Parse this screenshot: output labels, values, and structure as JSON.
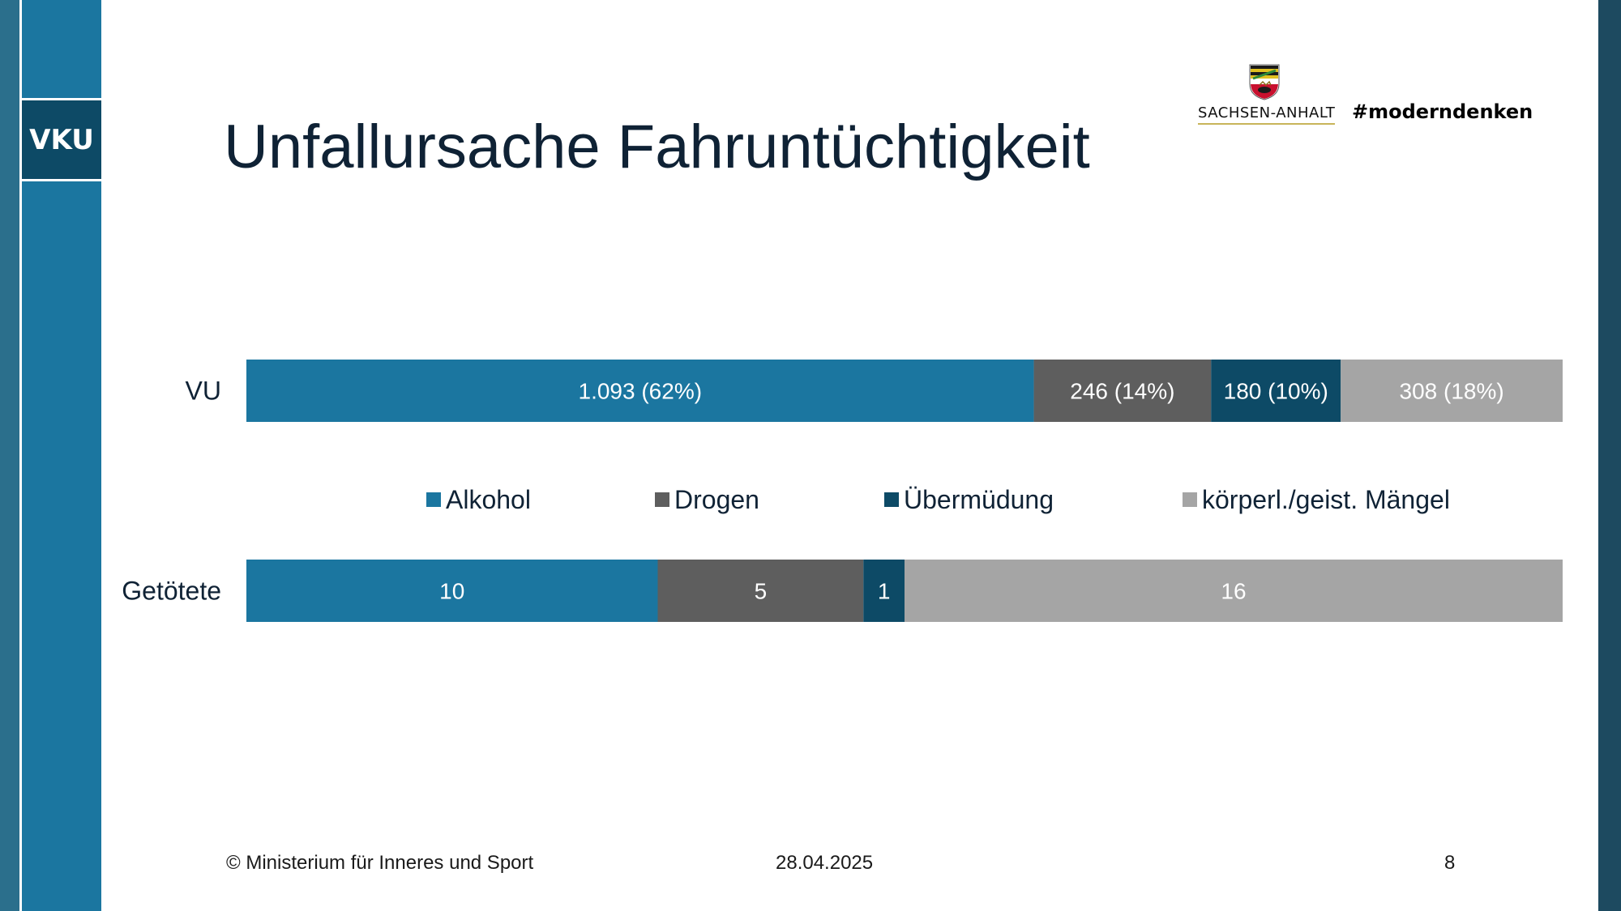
{
  "branding": {
    "sidebar_label": "VKU",
    "state_name": "SACHSEN-ANHALT",
    "hashtag": "#moderndenken",
    "coat_of_arms_icon": "coat-of-arms-icon"
  },
  "slide": {
    "title": "Unfallursache Fahruntüchtigkeit"
  },
  "chart_data": {
    "type": "bar",
    "orientation": "horizontal",
    "stacked": true,
    "normalized": true,
    "categories": [
      "VU",
      "Getötete"
    ],
    "series": [
      {
        "name": "Alkohol",
        "color": "#1b76a0",
        "values": [
          1093,
          10
        ],
        "labels": [
          "1.093 (62%)",
          "10"
        ]
      },
      {
        "name": "Drogen",
        "color": "#5e5e5e",
        "values": [
          246,
          5
        ],
        "labels": [
          "246 (14%)",
          "5"
        ]
      },
      {
        "name": "Übermüdung",
        "color": "#0d4a66",
        "values": [
          180,
          1
        ],
        "labels": [
          "180 (10%)",
          "1"
        ]
      },
      {
        "name": "körperl./geist. Mängel",
        "color": "#a5a5a5",
        "values": [
          308,
          16
        ],
        "labels": [
          "308 (18%)",
          "16"
        ]
      }
    ],
    "grid": false,
    "legend_position": "between bars"
  },
  "footer": {
    "copyright": "© Ministerium für Inneres und Sport",
    "date": "28.04.2025",
    "page_number": "8"
  }
}
